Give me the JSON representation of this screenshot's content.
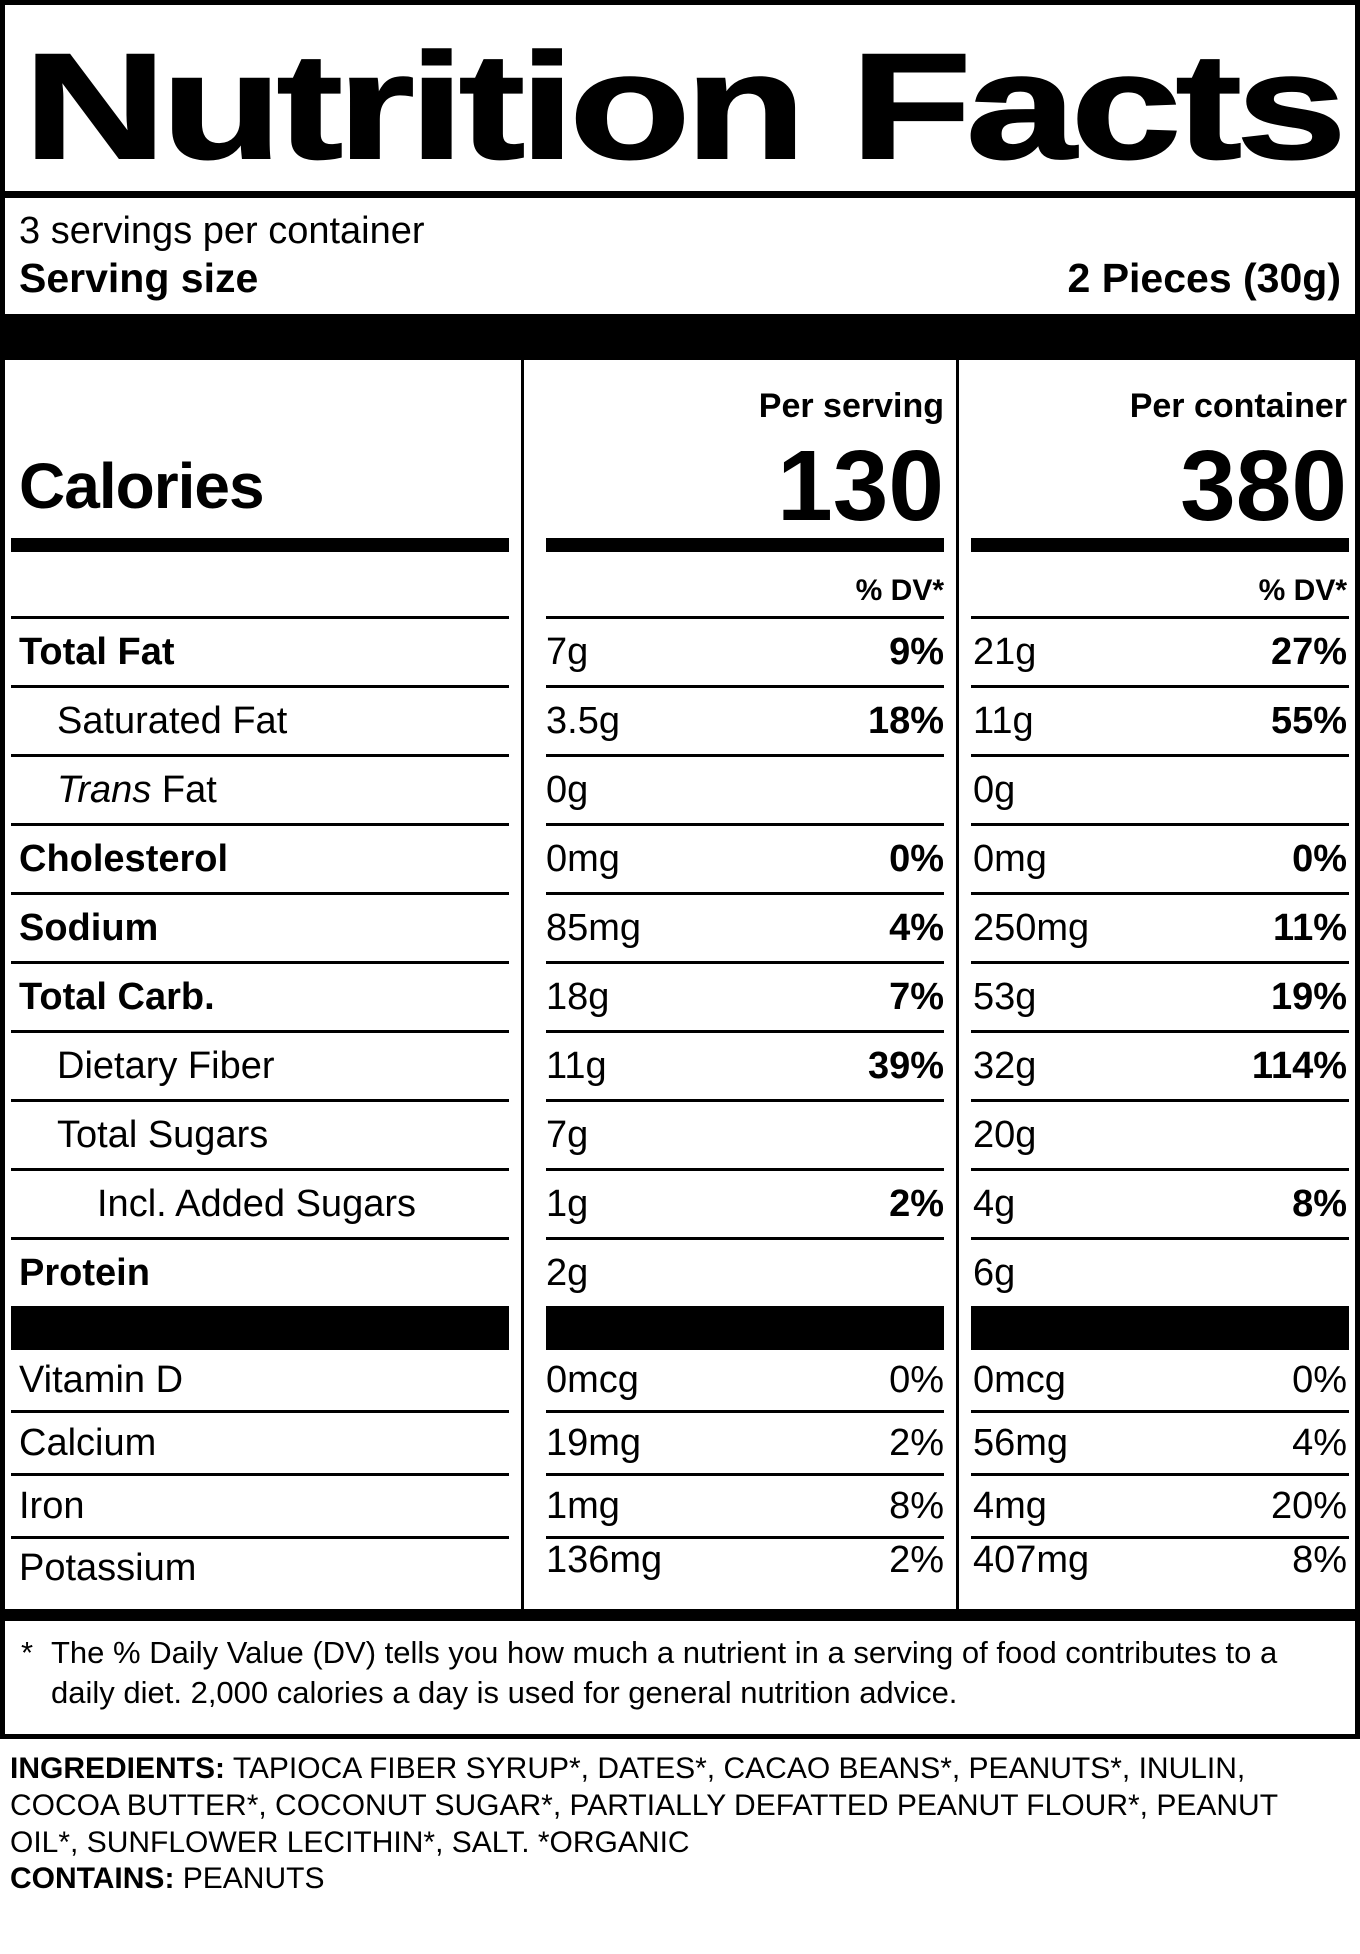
{
  "title": "Nutrition Facts",
  "servings_per_container": "3 servings per container",
  "serving_size": {
    "label": "Serving size",
    "value": "2 Pieces (30g)"
  },
  "columns": {
    "serving_header": "Per serving",
    "container_header": "Per container",
    "dv_header": "% DV*"
  },
  "calories": {
    "label": "Calories",
    "per_serving": "130",
    "per_container": "380"
  },
  "nutrients": [
    {
      "label": "Total Fat",
      "bold": true,
      "indent": 0,
      "serving_amount": "7g",
      "serving_dv": "9%",
      "container_amount": "21g",
      "container_dv": "27%"
    },
    {
      "label": "Saturated Fat",
      "bold": false,
      "indent": 1,
      "serving_amount": "3.5g",
      "serving_dv": "18%",
      "container_amount": "11g",
      "container_dv": "55%"
    },
    {
      "label": "Fat",
      "italic_prefix": "Trans",
      "bold": false,
      "indent": 1,
      "serving_amount": "0g",
      "serving_dv": "",
      "container_amount": "0g",
      "container_dv": ""
    },
    {
      "label": "Cholesterol",
      "bold": true,
      "indent": 0,
      "serving_amount": "0mg",
      "serving_dv": "0%",
      "container_amount": "0mg",
      "container_dv": "0%"
    },
    {
      "label": "Sodium",
      "bold": true,
      "indent": 0,
      "serving_amount": "85mg",
      "serving_dv": "4%",
      "container_amount": "250mg",
      "container_dv": "11%"
    },
    {
      "label": "Total Carb.",
      "bold": true,
      "indent": 0,
      "serving_amount": "18g",
      "serving_dv": "7%",
      "container_amount": "53g",
      "container_dv": "19%"
    },
    {
      "label": "Dietary Fiber",
      "bold": false,
      "indent": 1,
      "serving_amount": "11g",
      "serving_dv": "39%",
      "container_amount": "32g",
      "container_dv": "114%"
    },
    {
      "label": "Total Sugars",
      "bold": false,
      "indent": 1,
      "serving_amount": "7g",
      "serving_dv": "",
      "container_amount": "20g",
      "container_dv": ""
    },
    {
      "label": "Incl. Added Sugars",
      "bold": false,
      "indent": 2,
      "serving_amount": "1g",
      "serving_dv": "2%",
      "container_amount": "4g",
      "container_dv": "8%"
    },
    {
      "label": "Protein",
      "bold": true,
      "indent": 0,
      "serving_amount": "2g",
      "serving_dv": "",
      "container_amount": "6g",
      "container_dv": ""
    }
  ],
  "vitamins": [
    {
      "label": "Vitamin D",
      "serving_amount": "0mcg",
      "serving_dv": "0%",
      "container_amount": "0mcg",
      "container_dv": "0%"
    },
    {
      "label": "Calcium",
      "serving_amount": "19mg",
      "serving_dv": "2%",
      "container_amount": "56mg",
      "container_dv": "4%"
    },
    {
      "label": "Iron",
      "serving_amount": "1mg",
      "serving_dv": "8%",
      "container_amount": "4mg",
      "container_dv": "20%"
    },
    {
      "label": "Potassium",
      "serving_amount": "136mg",
      "serving_dv": "2%",
      "container_amount": "407mg",
      "container_dv": "8%"
    }
  ],
  "footnote": {
    "marker": "*",
    "text": "The % Daily Value (DV) tells you how much a nutrient in a serving of food contributes to a daily diet. 2,000 calories a day is used for general nutrition advice."
  },
  "ingredients": {
    "label": "INGREDIENTS:",
    "text": "TAPIOCA FIBER SYRUP*, DATES*, CACAO BEANS*, PEANUTS*, INULIN, COCOA BUTTER*, COCONUT SUGAR*, PARTIALLY DEFATTED PEANUT FLOUR*, PEANUT OIL*, SUNFLOWER LECITHIN*, SALT. *ORGANIC",
    "contains_label": "CONTAINS:",
    "contains_text": "PEANUTS"
  }
}
